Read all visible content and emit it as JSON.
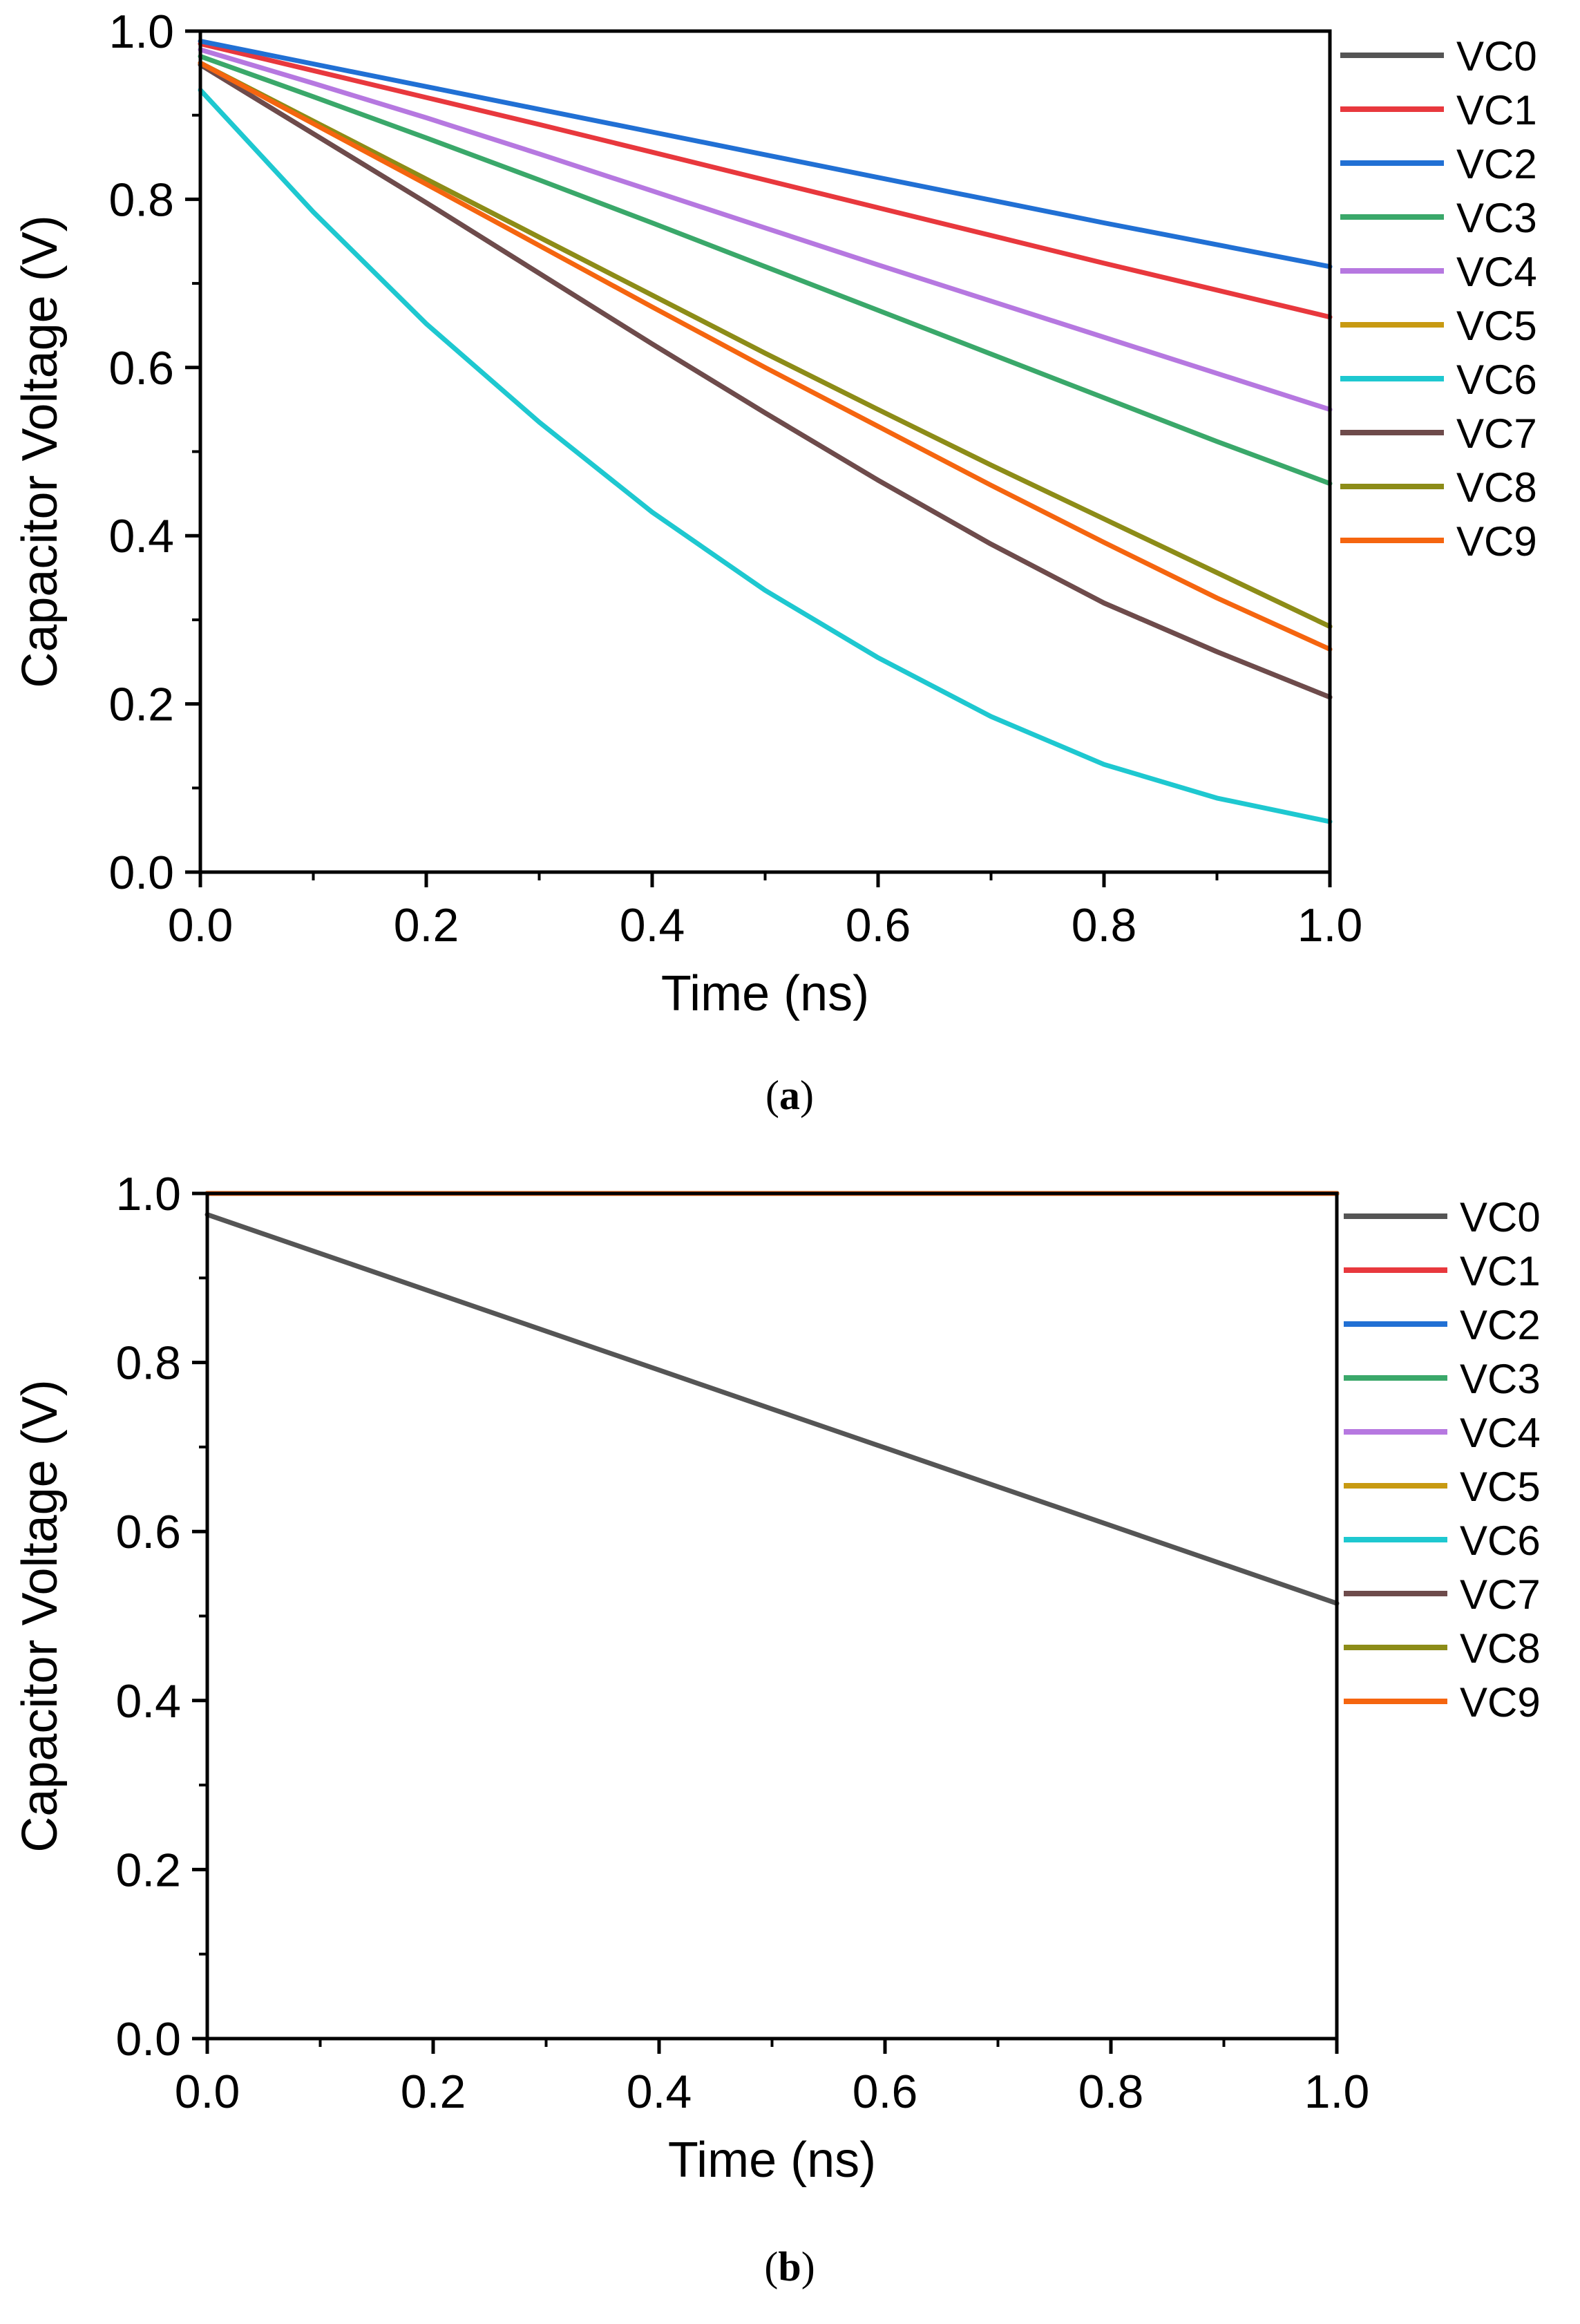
{
  "chart_data": [
    {
      "type": "line",
      "panel_label": "a",
      "xlabel": "Time (ns)",
      "ylabel": "Capacitor Voltage (V)",
      "xlim": [
        0,
        1
      ],
      "ylim": [
        0,
        1
      ],
      "xticks": [
        "0.0",
        "0.2",
        "0.4",
        "0.6",
        "0.8",
        "1.0"
      ],
      "yticks": [
        "0.0",
        "0.2",
        "0.4",
        "0.6",
        "0.8",
        "1.0"
      ],
      "legend_position": "right",
      "x": [
        0,
        0.1,
        0.2,
        0.3,
        0.4,
        0.5,
        0.6,
        0.7,
        0.8,
        0.9,
        1.0
      ],
      "series": [
        {
          "name": "VC0",
          "color": "#555555",
          "values": [
            0.96,
            0.878,
            0.796,
            0.712,
            0.628,
            0.546,
            0.466,
            0.39,
            0.32,
            0.262,
            0.208
          ]
        },
        {
          "name": "VC1",
          "color": "#e8383d",
          "values": [
            0.985,
            0.953,
            0.921,
            0.889,
            0.856,
            0.823,
            0.79,
            0.757,
            0.724,
            0.692,
            0.66
          ]
        },
        {
          "name": "VC2",
          "color": "#2170d4",
          "values": [
            0.988,
            0.961,
            0.934,
            0.907,
            0.88,
            0.853,
            0.826,
            0.799,
            0.772,
            0.746,
            0.72
          ]
        },
        {
          "name": "VC3",
          "color": "#3aa86a",
          "values": [
            0.97,
            0.922,
            0.873,
            0.823,
            0.772,
            0.72,
            0.668,
            0.616,
            0.564,
            0.512,
            0.462
          ]
        },
        {
          "name": "VC4",
          "color": "#b678e0",
          "values": [
            0.978,
            0.938,
            0.897,
            0.854,
            0.81,
            0.766,
            0.722,
            0.679,
            0.636,
            0.593,
            0.55
          ]
        },
        {
          "name": "VC5",
          "color": "#c89a12",
          "values": [
            0.962,
            0.893,
            0.824,
            0.755,
            0.686,
            0.617,
            0.55,
            0.484,
            0.42,
            0.356,
            0.292
          ]
        },
        {
          "name": "VC6",
          "color": "#1ec8d0",
          "values": [
            0.93,
            0.785,
            0.652,
            0.535,
            0.428,
            0.335,
            0.255,
            0.185,
            0.128,
            0.088,
            0.06
          ]
        },
        {
          "name": "VC7",
          "color": "#6e4b4b",
          "values": [
            0.96,
            0.878,
            0.796,
            0.712,
            0.628,
            0.546,
            0.466,
            0.39,
            0.32,
            0.262,
            0.208
          ]
        },
        {
          "name": "VC8",
          "color": "#8c8c18",
          "values": [
            0.962,
            0.893,
            0.824,
            0.755,
            0.686,
            0.617,
            0.55,
            0.484,
            0.42,
            0.356,
            0.292
          ]
        },
        {
          "name": "VC9",
          "color": "#f5650f",
          "values": [
            0.962,
            0.89,
            0.818,
            0.745,
            0.672,
            0.6,
            0.53,
            0.46,
            0.392,
            0.326,
            0.265
          ]
        }
      ]
    },
    {
      "type": "line",
      "panel_label": "b",
      "xlabel": "Time (ns)",
      "ylabel": "Capacitor Voltage (V)",
      "xlim": [
        0,
        1
      ],
      "ylim": [
        0,
        1
      ],
      "xticks": [
        "0.0",
        "0.2",
        "0.4",
        "0.6",
        "0.8",
        "1.0"
      ],
      "yticks": [
        "0.0",
        "0.2",
        "0.4",
        "0.6",
        "0.8",
        "1.0"
      ],
      "legend_position": "right",
      "x": [
        0,
        0.1,
        0.2,
        0.3,
        0.4,
        0.5,
        0.6,
        0.7,
        0.8,
        0.9,
        1.0
      ],
      "series": [
        {
          "name": "VC0",
          "color": "#555555",
          "values": [
            0.975,
            0.929,
            0.883,
            0.837,
            0.791,
            0.745,
            0.699,
            0.653,
            0.607,
            0.561,
            0.515
          ]
        },
        {
          "name": "VC1",
          "color": "#e8383d",
          "values": [
            1,
            1,
            1,
            1,
            1,
            1,
            1,
            1,
            1,
            1,
            1
          ]
        },
        {
          "name": "VC2",
          "color": "#2170d4",
          "values": [
            1,
            1,
            1,
            1,
            1,
            1,
            1,
            1,
            1,
            1,
            1
          ]
        },
        {
          "name": "VC3",
          "color": "#3aa86a",
          "values": [
            1,
            1,
            1,
            1,
            1,
            1,
            1,
            1,
            1,
            1,
            1
          ]
        },
        {
          "name": "VC4",
          "color": "#b678e0",
          "values": [
            1,
            1,
            1,
            1,
            1,
            1,
            1,
            1,
            1,
            1,
            1
          ]
        },
        {
          "name": "VC5",
          "color": "#c89a12",
          "values": [
            1,
            1,
            1,
            1,
            1,
            1,
            1,
            1,
            1,
            1,
            1
          ]
        },
        {
          "name": "VC6",
          "color": "#1ec8d0",
          "values": [
            1,
            1,
            1,
            1,
            1,
            1,
            1,
            1,
            1,
            1,
            1
          ]
        },
        {
          "name": "VC7",
          "color": "#6e4b4b",
          "values": [
            1,
            1,
            1,
            1,
            1,
            1,
            1,
            1,
            1,
            1,
            1
          ]
        },
        {
          "name": "VC8",
          "color": "#8c8c18",
          "values": [
            1,
            1,
            1,
            1,
            1,
            1,
            1,
            1,
            1,
            1,
            1
          ]
        },
        {
          "name": "VC9",
          "color": "#f5650f",
          "values": [
            1,
            1,
            1,
            1,
            1,
            1,
            1,
            1,
            1,
            1,
            1
          ]
        }
      ]
    }
  ]
}
